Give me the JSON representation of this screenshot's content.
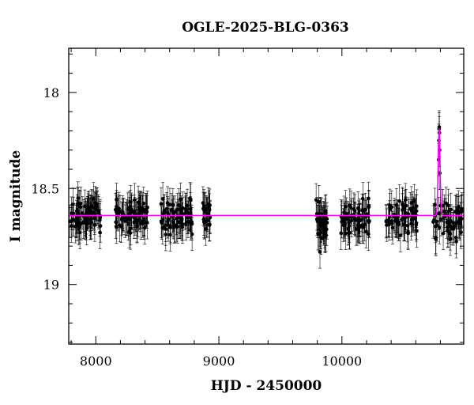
{
  "chart_data": {
    "type": "scatter",
    "title": "OGLE-2025-BLG-0363",
    "xlabel": "HJD - 2450000",
    "ylabel": "I magnitude",
    "xlim": [
      7780,
      10990
    ],
    "ylim": [
      19.31,
      17.77
    ],
    "y_inverted": true,
    "x_ticks": [
      8000,
      9000,
      10000
    ],
    "y_ticks": [
      18,
      18.5,
      19
    ],
    "x_minor_step": 200,
    "y_minor_step": 0.1,
    "grid": false,
    "legend": "none",
    "baseline_magnitude": 18.64,
    "model": {
      "color": "#ff00ff",
      "t0": 10790,
      "peak_magnitude": 18.19,
      "width_days": 8
    },
    "series": [
      {
        "point_color": "#000000",
        "seasons": [
          {
            "start": 7790,
            "end": 8040,
            "mean": 18.64,
            "scatter": 0.055,
            "n": 80
          },
          {
            "start": 8160,
            "end": 8420,
            "mean": 18.64,
            "scatter": 0.055,
            "n": 80
          },
          {
            "start": 8530,
            "end": 8790,
            "mean": 18.65,
            "scatter": 0.06,
            "n": 80
          },
          {
            "start": 8870,
            "end": 8930,
            "mean": 18.64,
            "scatter": 0.06,
            "n": 25
          },
          {
            "start": 9790,
            "end": 9880,
            "mean": 18.68,
            "scatter": 0.08,
            "n": 40
          },
          {
            "start": 9990,
            "end": 10230,
            "mean": 18.66,
            "scatter": 0.06,
            "n": 70
          },
          {
            "start": 10360,
            "end": 10610,
            "mean": 18.65,
            "scatter": 0.06,
            "n": 70
          },
          {
            "start": 10740,
            "end": 10980,
            "mean": 18.66,
            "scatter": 0.07,
            "n": 60
          }
        ],
        "peak_points": [
          {
            "x": 10786,
            "y": 18.35
          },
          {
            "x": 10788,
            "y": 18.25
          },
          {
            "x": 10790,
            "y": 18.19
          },
          {
            "x": 10791,
            "y": 18.18
          },
          {
            "x": 10792,
            "y": 18.21
          },
          {
            "x": 10794,
            "y": 18.3
          },
          {
            "x": 10796,
            "y": 18.42
          }
        ],
        "error_bar_mag": 0.085
      }
    ]
  }
}
